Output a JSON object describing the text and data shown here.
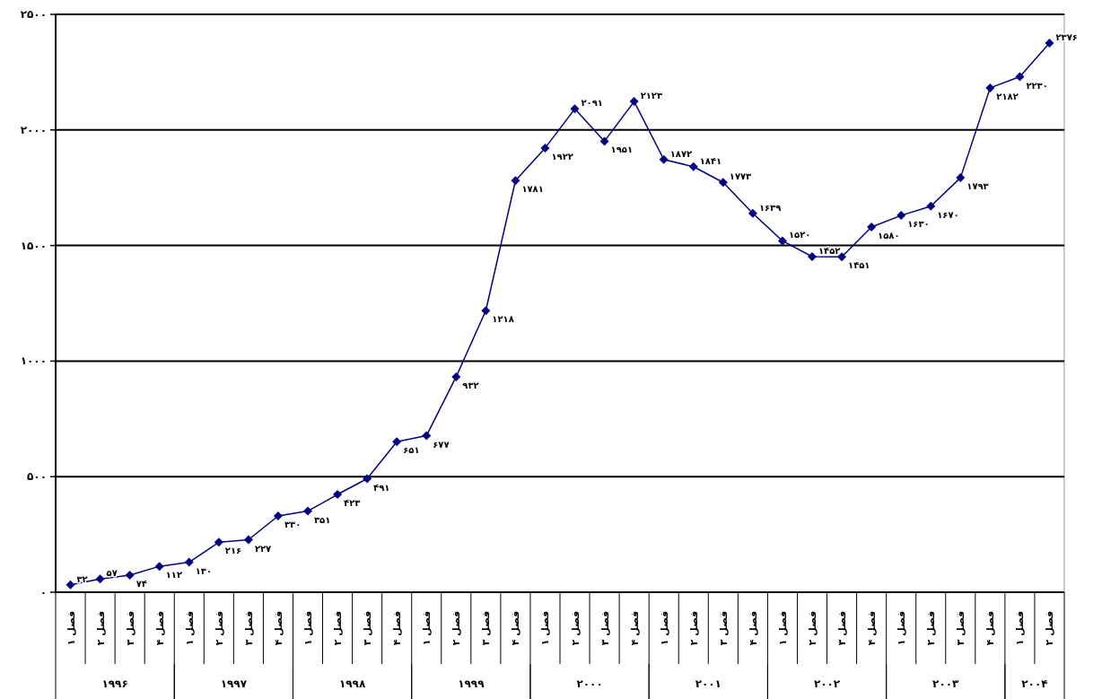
{
  "chart_data": {
    "type": "line",
    "categories": [
      "فصل ۱",
      "فصل ۲",
      "فصل ۳",
      "فصل ۴",
      "فصل ۱",
      "فصل ۲",
      "فصل ۳",
      "فصل ۴",
      "فصل ۱",
      "فصل ۲",
      "فصل ۳",
      "فصل ۴",
      "فصل ۱",
      "فصل ۲",
      "فصل ۳",
      "فصل ۴",
      "فصل ۱",
      "فصل ۲",
      "فصل ۳",
      "فصل ۴",
      "فصل ۱",
      "فصل ۲",
      "فصل ۳",
      "فصل ۴",
      "فصل ۱",
      "فصل ۲",
      "فصل ۳",
      "فصل ۴",
      "فصل ۱",
      "فصل ۲",
      "فصل ۳",
      "فصل ۴",
      "فصل ۱",
      "فصل ۲"
    ],
    "series": [
      {
        "color": "#000080",
        "values": [
          32,
          57,
          74,
          112,
          130,
          216,
          227,
          330,
          351,
          423,
          491,
          651,
          677,
          932,
          1218,
          1781,
          1922,
          2091,
          1951,
          2123,
          1872,
          1841,
          1773,
          1639,
          1520,
          1452,
          1451,
          1580,
          1630,
          1670,
          1793,
          2182,
          2230,
          2376
        ],
        "value_labels": [
          "۳۲",
          "۵۷",
          "۷۴",
          "۱۱۲",
          "۱۳۰",
          "۲۱۶",
          "۲۲۷",
          "۳۳۰",
          "۳۵۱",
          "۴۲۳",
          "۴۹۱",
          "۶۵۱",
          "۶۷۷",
          "۹۳۲",
          "۱۲۱۸",
          "۱۷۸۱",
          "۱۹۲۲",
          "۲۰۹۱",
          "۱۹۵۱",
          "۲۱۲۳",
          "۱۸۷۲",
          "۱۸۴۱",
          "۱۷۷۳",
          "۱۶۳۹",
          "۱۵۲۰",
          "۱۴۵۲",
          "۱۴۵۱",
          "۱۵۸۰",
          "۱۶۳۰",
          "۱۶۷۰",
          "۱۷۹۳",
          "۲۱۸۲",
          "۲۲۳۰",
          "۲۳۷۶"
        ]
      }
    ],
    "annotations": [
      "۱۹۹۶",
      "۱۹۹۷",
      "۱۹۹۸",
      "۱۹۹۹",
      "۲۰۰۰",
      "۲۰۰۱",
      "۲۰۰۲",
      "۲۰۰۳",
      "۲۰۰۴"
    ],
    "ylim": [
      0,
      2500
    ],
    "yticks": [
      {
        "value": 0,
        "label": "۰"
      },
      {
        "value": 500,
        "label": "۵۰۰"
      },
      {
        "value": 1000,
        "label": "۱۰۰۰"
      },
      {
        "value": 1500,
        "label": "۱۵۰۰"
      },
      {
        "value": 2000,
        "label": "۲۰۰۰"
      },
      {
        "value": 2500,
        "label": "۲۵۰۰"
      }
    ],
    "grid": "y",
    "marker": "diamond",
    "line_style": "solid"
  }
}
